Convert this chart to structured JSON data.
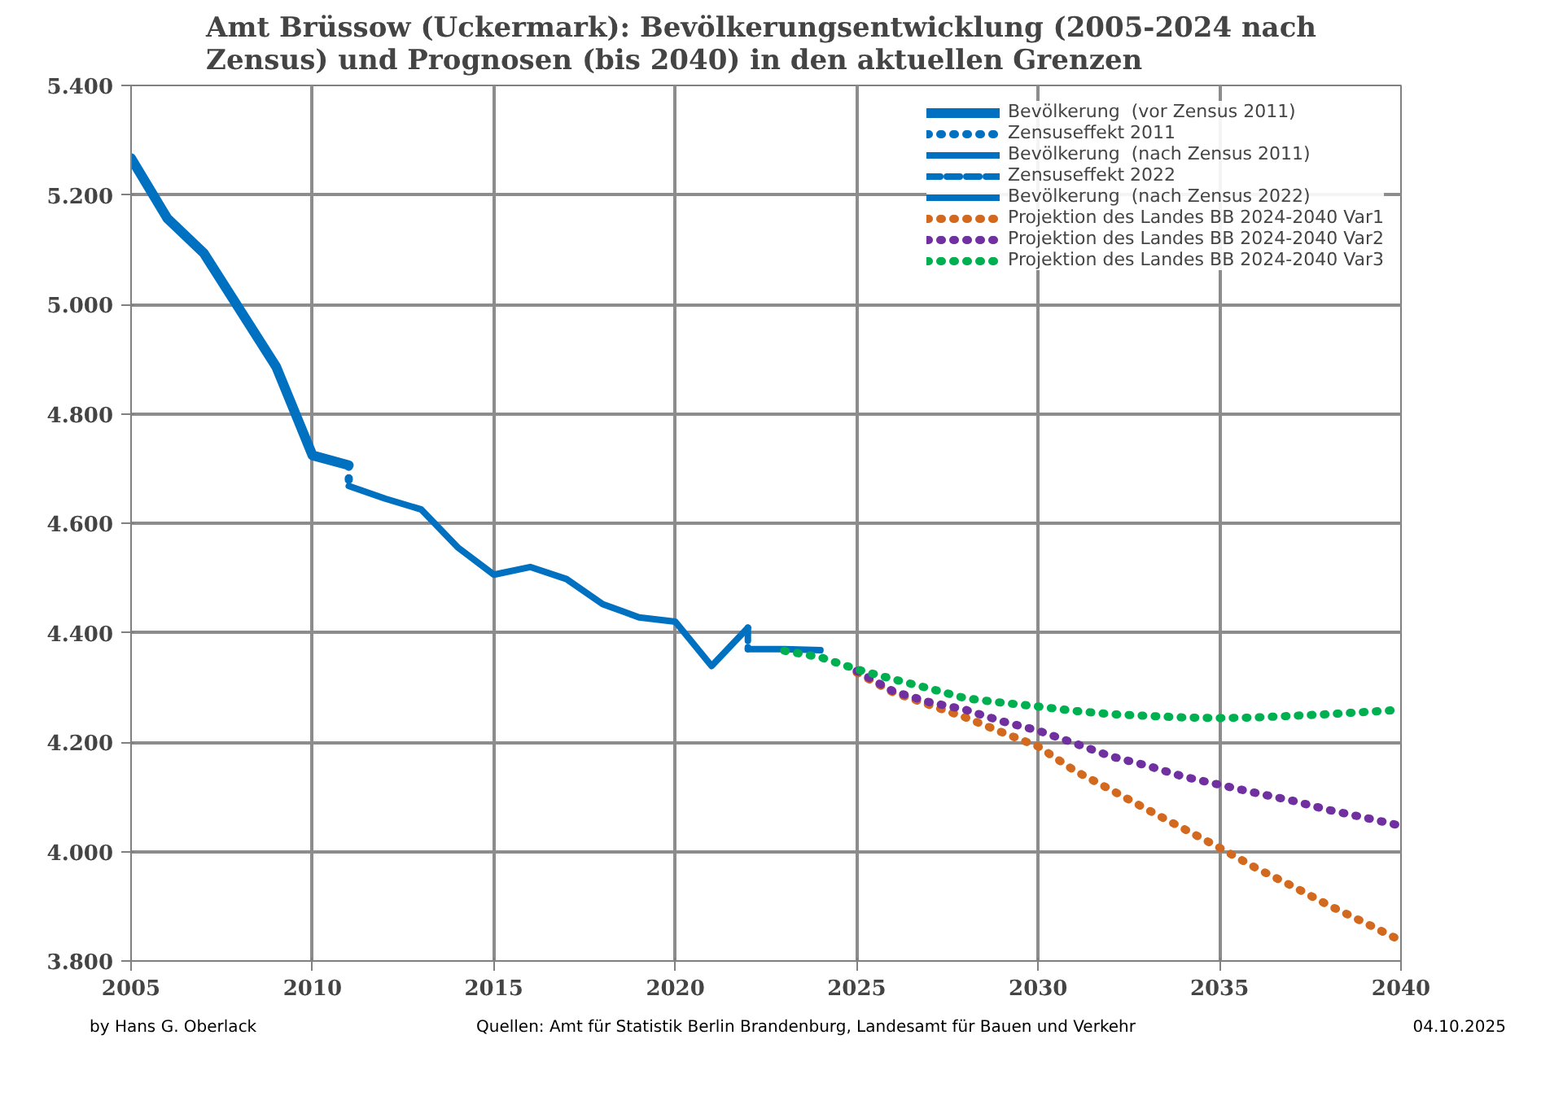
{
  "chart_data": {
    "type": "line",
    "title": "Amt Brüssow (Uckermark):  Bevölkerungsentwicklung (2005-2024 nach Zensus) und Prognosen (bis 2040) in den aktuellen Grenzen",
    "xlim": [
      2005,
      2040
    ],
    "xticks": [
      2005,
      2010,
      2015,
      2020,
      2025,
      2030,
      2035,
      2040
    ],
    "ylim": [
      3800,
      5400
    ],
    "yticks": [
      {
        "value": 3800,
        "label": "3.800"
      },
      {
        "value": 4000,
        "label": "4.000"
      },
      {
        "value": 4200,
        "label": "4.200"
      },
      {
        "value": 4400,
        "label": "4.400"
      },
      {
        "value": 4600,
        "label": "4.600"
      },
      {
        "value": 4800,
        "label": "4.800"
      },
      {
        "value": 5000,
        "label": "5.000"
      },
      {
        "value": 5200,
        "label": "5.200"
      },
      {
        "value": 5400,
        "label": "5.400"
      }
    ],
    "grid": true,
    "legend": "top right",
    "marker": "none",
    "series": [
      {
        "name": "Bevölkerung  (vor Zensus 2011)",
        "color": "#0070c0",
        "line_style": "solid",
        "x": [
          2005,
          2006,
          2007,
          2008,
          2009,
          2010,
          2011
        ],
        "values": [
          5267,
          5157,
          5094,
          4990,
          4886,
          4724,
          4706
        ]
      },
      {
        "name": "Zensuseffekt 2011",
        "color": "#0070c0",
        "line_style": "dotted",
        "x": [
          2011,
          2011
        ],
        "values": [
          4706,
          4668
        ]
      },
      {
        "name": "Bevölkerung  (nach Zensus 2011)",
        "color": "#0070c0",
        "line_style": "solid",
        "x": [
          2011,
          2012,
          2013,
          2014,
          2015,
          2016,
          2017,
          2018,
          2019,
          2020,
          2021,
          2022
        ],
        "values": [
          4668,
          4645,
          4625,
          4556,
          4506,
          4520,
          4498,
          4452,
          4428,
          4420,
          4339,
          4409
        ]
      },
      {
        "name": "Zensuseffekt 2022",
        "color": "#0070c0",
        "line_style": "dashed",
        "x": [
          2022,
          2022
        ],
        "values": [
          4409,
          4370
        ]
      },
      {
        "name": "Bevölkerung  (nach Zensus 2022)",
        "color": "#0070c0",
        "line_style": "solid",
        "x": [
          2022,
          2023,
          2024
        ],
        "values": [
          4370,
          4370,
          4368
        ]
      },
      {
        "name": "Projektion des Landes BB 2024-2040 Var1",
        "color": "#d2691e",
        "line_style": "dotted",
        "x": [
          2025,
          2026,
          2027,
          2028,
          2029,
          2030,
          2031,
          2032,
          2033,
          2034,
          2035,
          2036,
          2037,
          2038,
          2039,
          2040
        ],
        "values": [
          4327,
          4291,
          4268,
          4245,
          4218,
          4192,
          4148,
          4113,
          4077,
          4042,
          4007,
          3970,
          3937,
          3902,
          3870,
          3837
        ]
      },
      {
        "name": "Projektion des Landes BB 2024-2040 Var2",
        "color": "#7030a0",
        "line_style": "dotted",
        "x": [
          2025,
          2026,
          2027,
          2028,
          2029,
          2030,
          2031,
          2032,
          2033,
          2034,
          2035,
          2036,
          2037,
          2038,
          2039,
          2040
        ],
        "values": [
          4330,
          4293,
          4273,
          4259,
          4238,
          4221,
          4198,
          4174,
          4157,
          4137,
          4122,
          4107,
          4093,
          4076,
          4062,
          4047
        ]
      },
      {
        "name": "Projektion des Landes BB 2024-2040 Var3",
        "color": "#00b050",
        "line_style": "dotted",
        "x": [
          2023,
          2024,
          2025,
          2026,
          2027,
          2028,
          2029,
          2030,
          2031,
          2032,
          2033,
          2034,
          2035,
          2036,
          2037,
          2038,
          2039,
          2040
        ],
        "values": [
          4367,
          4355,
          4333,
          4315,
          4298,
          4280,
          4272,
          4265,
          4257,
          4251,
          4248,
          4245,
          4244,
          4245,
          4248,
          4251,
          4255,
          4259
        ]
      }
    ],
    "annotations": [
      "by Hans G. Oberlack",
      "Quellen: Amt für Statistik Berlin Brandenburg, Landesamt für Bauen und Verkehr",
      "04.10.2025"
    ]
  }
}
